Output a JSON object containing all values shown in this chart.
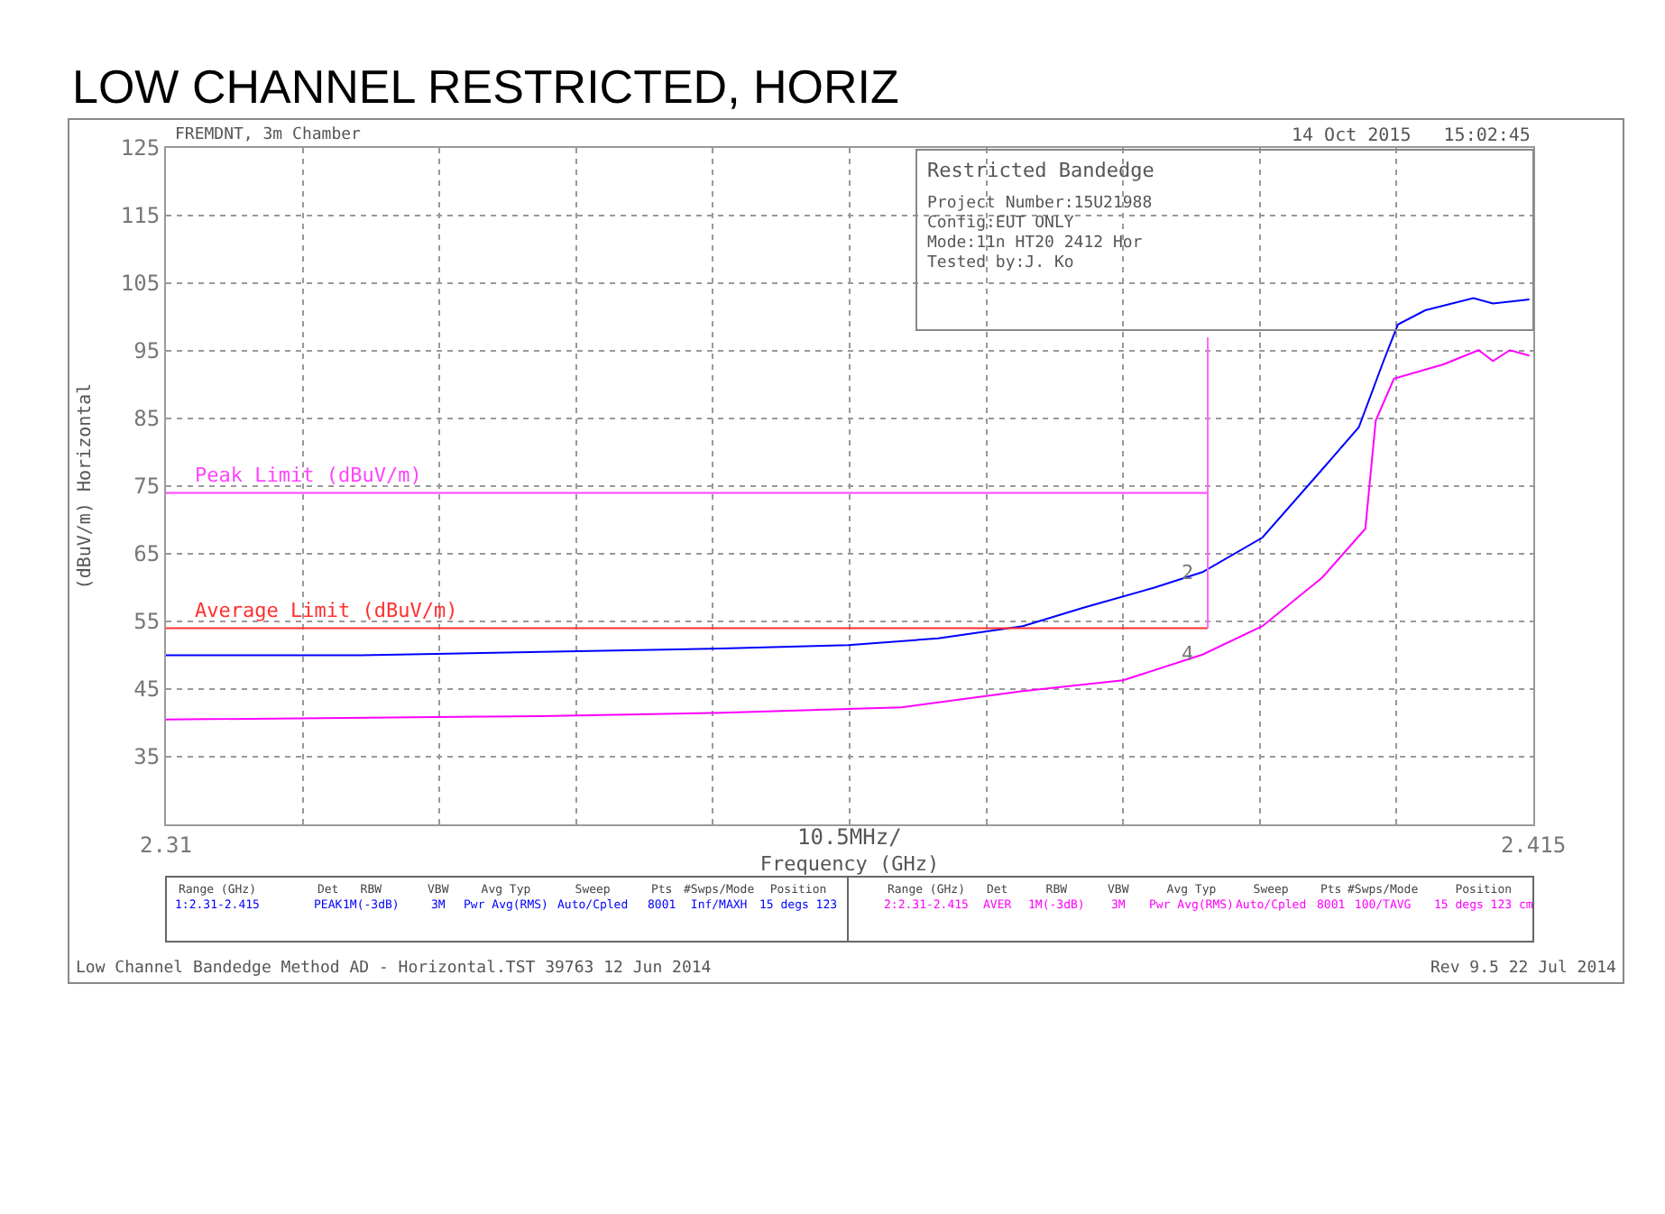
{
  "chart_data": {
    "type": "line",
    "title": "LOW CHANNEL RESTRICTED, HORIZ",
    "xlabel": "Frequency (GHz)",
    "ylabel": "(dBuV/m) Horizontal",
    "xlim": [
      2.31,
      2.415
    ],
    "xticks": [
      2.31,
      {
        "value": 2.3205,
        "label": null
      },
      {
        "value": 2.331,
        "label": null
      },
      {
        "value": 2.3415,
        "label": null
      },
      {
        "value": 2.352,
        "label": null
      },
      {
        "value": 2.3625,
        "label": null
      },
      {
        "value": 2.373,
        "label": null
      },
      {
        "value": 2.3835,
        "label": null
      },
      {
        "value": 2.394,
        "label": null
      },
      {
        "value": 2.4045,
        "label": null
      },
      2.415
    ],
    "ylim": [
      25,
      125
    ],
    "yticks": [
      {
        "value": 25,
        "label": null
      },
      35,
      45,
      55,
      65,
      75,
      85,
      95,
      105,
      115,
      125
    ],
    "grid": true,
    "series": [
      {
        "color": "#0000ff",
        "x": [
          2.31,
          2.325,
          2.3388,
          2.3527,
          2.3624,
          2.3693,
          2.3758,
          2.3804,
          2.3859,
          2.3896,
          2.3942,
          2.3988,
          2.4016,
          2.4035,
          2.4046,
          2.4067,
          2.4104,
          2.4119,
          2.4147
        ],
        "values": [
          50,
          50,
          50.5,
          51,
          51.5,
          52.5,
          54.3,
          57,
          60,
          62.3,
          67.4,
          77.5,
          83.7,
          93.5,
          98.9,
          101,
          102.8,
          102,
          102.6
        ]
      },
      {
        "color": "#ff00ff",
        "x": [
          2.31,
          2.3388,
          2.3527,
          2.3665,
          2.3758,
          2.3835,
          2.3896,
          2.3942,
          2.3988,
          2.4021,
          2.4029,
          2.4043,
          2.4081,
          2.4108,
          2.4119,
          2.4132,
          2.4147
        ],
        "values": [
          40.5,
          41,
          41.5,
          42.3,
          44.7,
          46.3,
          50.1,
          54.3,
          61.5,
          68.7,
          84.7,
          90.9,
          93,
          95.1,
          93.5,
          95.1,
          94.3
        ]
      },
      {
        "name": "Peak Limit (dBuV/m)",
        "color": "#ff44ff",
        "x": [
          2.31,
          2.39
        ],
        "values": [
          74,
          74
        ]
      },
      {
        "name": "Average Limit (dBuV/m)",
        "color": "#ff3030",
        "x": [
          2.31,
          2.39
        ],
        "values": [
          54,
          54
        ]
      },
      {
        "color": "#ff66ff",
        "x": [
          2.39,
          2.39
        ],
        "values": [
          54,
          97
        ]
      }
    ],
    "annotations": [
      "FREMDNT, 3m Chamber",
      "14 Oct 2015   15:02:45",
      "Restricted Bandedge",
      "Project Number:15U21988",
      "Config:EUT ONLY",
      "Mode:11n HT20 2412 Hor",
      "Tested by:J. Ko",
      "10.5MHz/",
      "Range (GHz)\n1:2.31-2.415",
      "Det\nPEAK",
      "RBW\n1M(-3dB)",
      "VBW\n3M",
      "Avg Typ\nPwr Avg(RMS)",
      "Sweep\nAuto/Cpled",
      "Pts\n8001",
      "#Swps/Mode\nInf/MAXH",
      "Position\n15 degs 123",
      "Range (GHz)\n2:2.31-2.415",
      "Det\nAVER",
      "RBW\n1M(-3dB)",
      "VBW\n3M",
      "Avg Typ\nPwr Avg(RMS)",
      "Sweep\nAuto/Cpled",
      "Pts\n8001",
      "#Swps/Mode\n100/TAVG",
      "Position\n15 degs 123 cm",
      "Low Channel Bandedge Method AD - Horizontal.TST 39763 12 Jun 2014",
      "Rev 9.5 22 Jul 2014",
      {
        "text": "2",
        "x": 2.3896,
        "y": 62.3
      },
      {
        "text": "4",
        "x": 2.3896,
        "y": 50.1
      }
    ]
  }
}
